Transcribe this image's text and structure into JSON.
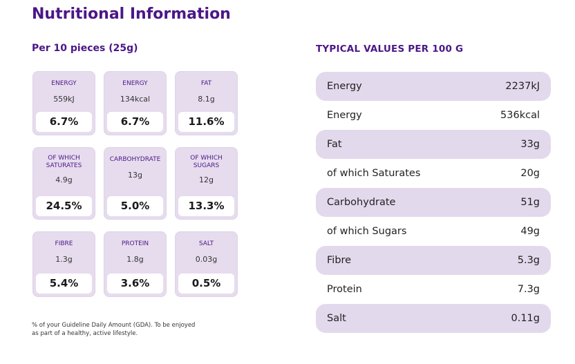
{
  "title": "Nutritional Information",
  "per_portion": {
    "heading": "Per 10 pieces (25g)",
    "tiles": [
      {
        "label": "ENERGY",
        "amount": "559kJ",
        "percent": "6.7%"
      },
      {
        "label": "ENERGY",
        "amount": "134kcal",
        "percent": "6.7%"
      },
      {
        "label": "FAT",
        "amount": "8.1g",
        "percent": "11.6%"
      },
      {
        "label": "OF WHICH SATURATES",
        "amount": "4.9g",
        "percent": "24.5%"
      },
      {
        "label": "CARBOHYDRATE",
        "amount": "13g",
        "percent": "5.0%"
      },
      {
        "label": "OF WHICH SUGARS",
        "amount": "12g",
        "percent": "13.3%"
      },
      {
        "label": "FIBRE",
        "amount": "1.3g",
        "percent": "5.4%"
      },
      {
        "label": "PROTEIN",
        "amount": "1.8g",
        "percent": "3.6%"
      },
      {
        "label": "SALT",
        "amount": "0.03g",
        "percent": "0.5%"
      }
    ],
    "footnote": "% of your Guideline Daily Amount (GDA). To be enjoyed as part of a healthy, active lifestyle."
  },
  "per_100g": {
    "heading": "TYPICAL VALUES PER 100 G",
    "rows": [
      {
        "name": "Energy",
        "value": "2237kJ"
      },
      {
        "name": "Energy",
        "value": "536kcal"
      },
      {
        "name": "Fat",
        "value": "33g"
      },
      {
        "name": "of which Saturates",
        "value": "20g"
      },
      {
        "name": "Carbohydrate",
        "value": "51g"
      },
      {
        "name": "of which Sugars",
        "value": "49g"
      },
      {
        "name": "Fibre",
        "value": "5.3g"
      },
      {
        "name": "Protein",
        "value": "7.3g"
      },
      {
        "name": "Salt",
        "value": "0.11g"
      }
    ]
  },
  "colors": {
    "brand": "#4b1787",
    "tile_bg": "#e6dcee",
    "row_alt": "#e3d9ec"
  }
}
